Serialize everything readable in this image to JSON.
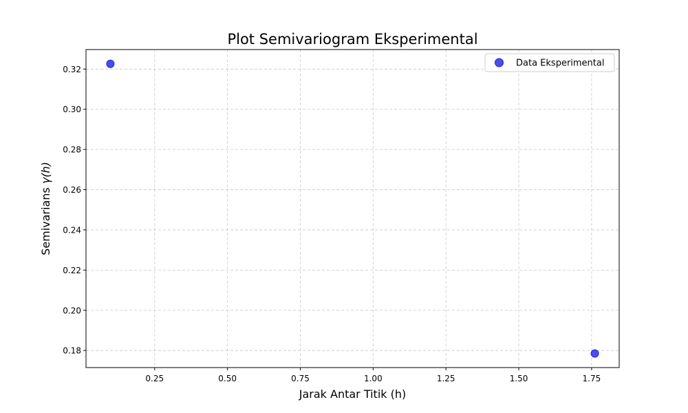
{
  "chart_data": {
    "type": "scatter",
    "title": "Plot Semivariogram Eksperimental",
    "xlabel": "Jarak Antar Titik (h)",
    "ylabel_prefix": "Semivarians ",
    "ylabel_math": "γ(h)",
    "xlim": [
      0.0143,
      1.8447
    ],
    "ylim": [
      0.1715,
      0.3297
    ],
    "x_ticks": [
      0.25,
      0.5,
      0.75,
      1.0,
      1.25,
      1.5,
      1.75
    ],
    "x_tick_labels": [
      "0.25",
      "0.50",
      "0.75",
      "1.00",
      "1.25",
      "1.50",
      "1.75"
    ],
    "y_ticks": [
      0.18,
      0.2,
      0.22,
      0.24,
      0.26,
      0.28,
      0.3,
      0.32
    ],
    "y_tick_labels": [
      "0.18",
      "0.20",
      "0.22",
      "0.24",
      "0.26",
      "0.28",
      "0.30",
      "0.32"
    ],
    "grid": true,
    "legend_position": "top-right",
    "series": [
      {
        "name": "Data Eksperimental",
        "color": "#1f1fe6",
        "x": [
          0.098,
          1.761
        ],
        "y": [
          0.3226,
          0.1785
        ]
      }
    ]
  }
}
